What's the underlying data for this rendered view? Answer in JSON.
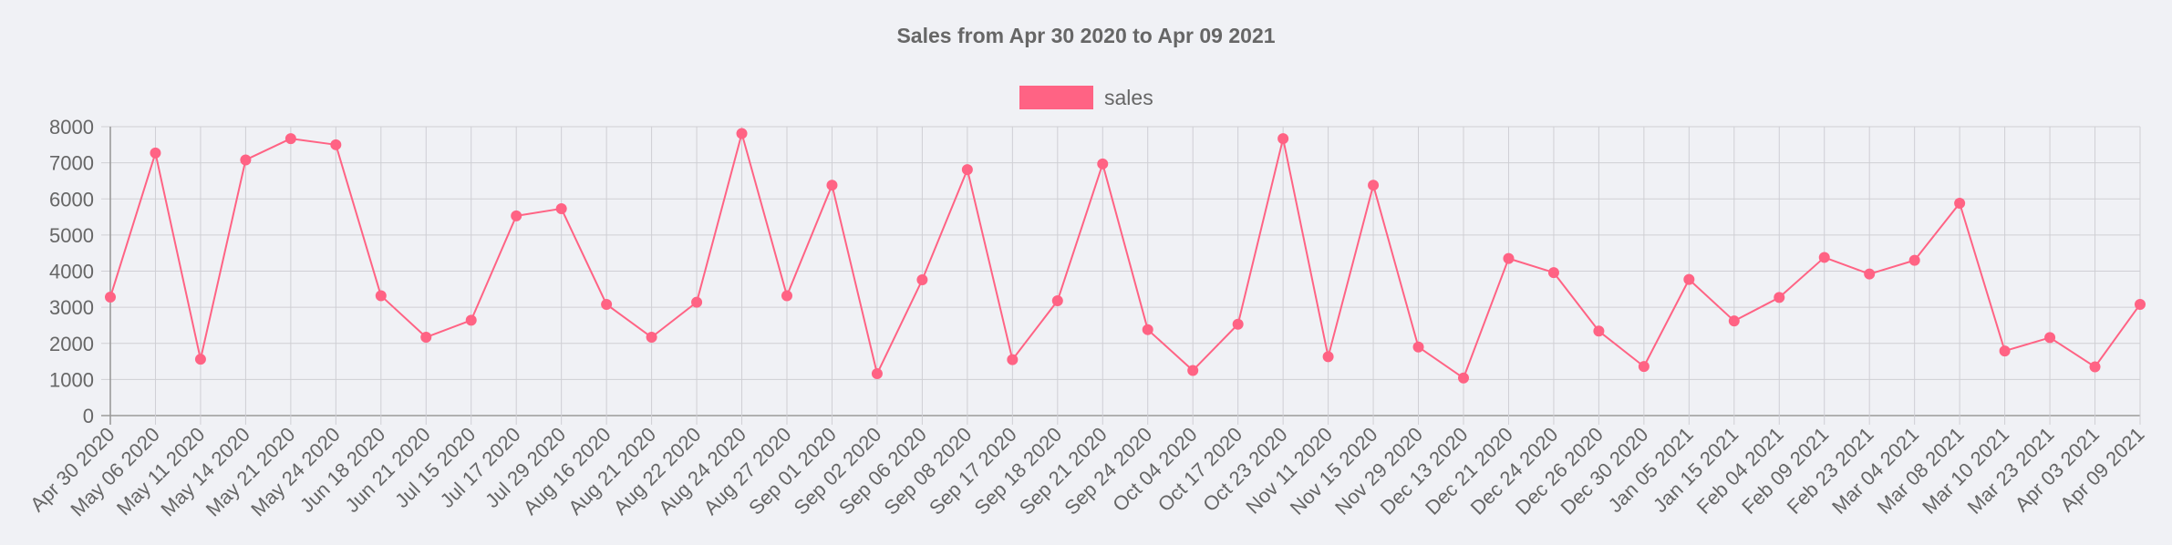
{
  "chart_data": {
    "type": "line",
    "title": "Sales from Apr 30 2020 to Apr 09 2021",
    "xlabel": "",
    "ylabel": "",
    "ylim": [
      0,
      8000
    ],
    "y_ticks": [
      "0",
      "1000",
      "2000",
      "3000",
      "4000",
      "5000",
      "6000",
      "7000",
      "8000"
    ],
    "grid": true,
    "legend_position": "top-center",
    "categories": [
      "Apr 30 2020",
      "May 06 2020",
      "May 11 2020",
      "May 14 2020",
      "May 21 2020",
      "May 24 2020",
      "Jun 18 2020",
      "Jun 21 2020",
      "Jul 15 2020",
      "Jul 17 2020",
      "Jul 29 2020",
      "Aug 16 2020",
      "Aug 21 2020",
      "Aug 22 2020",
      "Aug 24 2020",
      "Aug 27 2020",
      "Sep 01 2020",
      "Sep 02 2020",
      "Sep 06 2020",
      "Sep 08 2020",
      "Sep 17 2020",
      "Sep 18 2020",
      "Sep 21 2020",
      "Sep 24 2020",
      "Oct 04 2020",
      "Oct 17 2020",
      "Oct 23 2020",
      "Nov 11 2020",
      "Nov 15 2020",
      "Nov 29 2020",
      "Dec 13 2020",
      "Dec 21 2020",
      "Dec 24 2020",
      "Dec 26 2020",
      "Dec 30 2020",
      "Jan 05 2021",
      "Jan 15 2021",
      "Feb 04 2021",
      "Feb 09 2021",
      "Feb 23 2021",
      "Mar 04 2021",
      "Mar 08 2021",
      "Mar 10 2021",
      "Mar 23 2021",
      "Apr 03 2021",
      "Apr 09 2021"
    ],
    "series": [
      {
        "name": "sales",
        "color": "#ff6384",
        "values": [
          3280,
          7270,
          1560,
          7080,
          7670,
          7500,
          3320,
          2170,
          2640,
          5530,
          5730,
          3080,
          2170,
          3140,
          7810,
          3320,
          6380,
          1160,
          3760,
          6810,
          1550,
          3180,
          6970,
          2380,
          1250,
          2530,
          7670,
          1630,
          6380,
          1900,
          1040,
          4350,
          3960,
          2340,
          1360,
          3770,
          2620,
          3270,
          4380,
          3920,
          4300,
          5880,
          1790,
          2160,
          1350,
          3080
        ]
      }
    ]
  }
}
